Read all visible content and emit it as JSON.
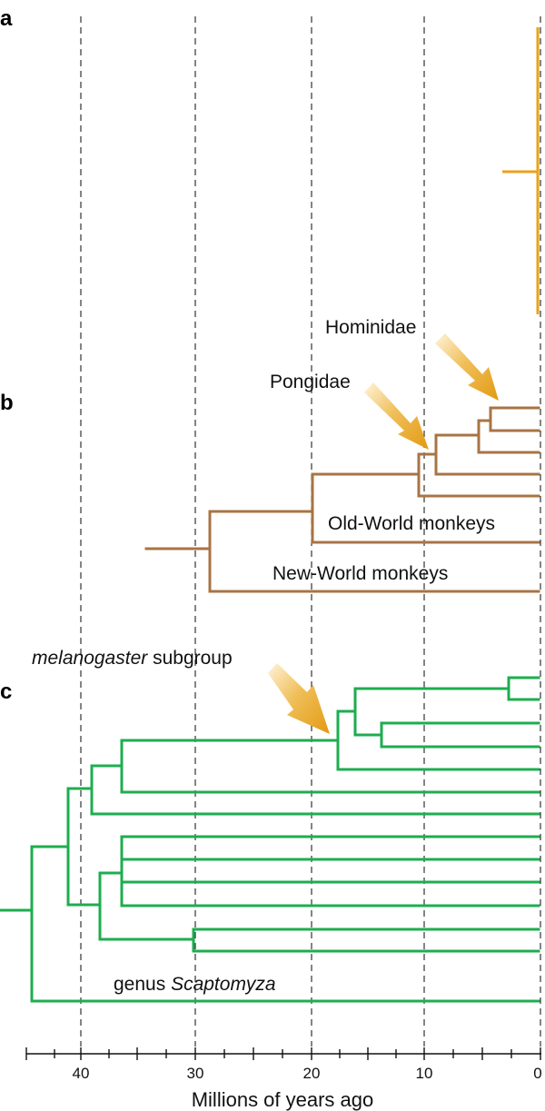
{
  "panels": {
    "a": "a",
    "b": "b",
    "c": "c"
  },
  "labels": {
    "hominidae": "Hominidae",
    "pongidae": "Pongidae",
    "old_world": "Old-World monkeys",
    "new_world": "New-World monkeys",
    "melanogaster_italic": "melanogaster",
    "melanogaster_rest": " subgroup",
    "scaptomyza_prefix": "genus ",
    "scaptomyza_italic": "Scaptomyza"
  },
  "axis": {
    "title": "Millions of years ago",
    "ticks": [
      "40",
      "30",
      "20",
      "10",
      "0"
    ]
  },
  "colors": {
    "panel_a": "#e8a31c",
    "panel_b": "#a87444",
    "panel_c": "#1ead4f",
    "arrow": "#e8a31c",
    "grid": "#333333"
  }
}
